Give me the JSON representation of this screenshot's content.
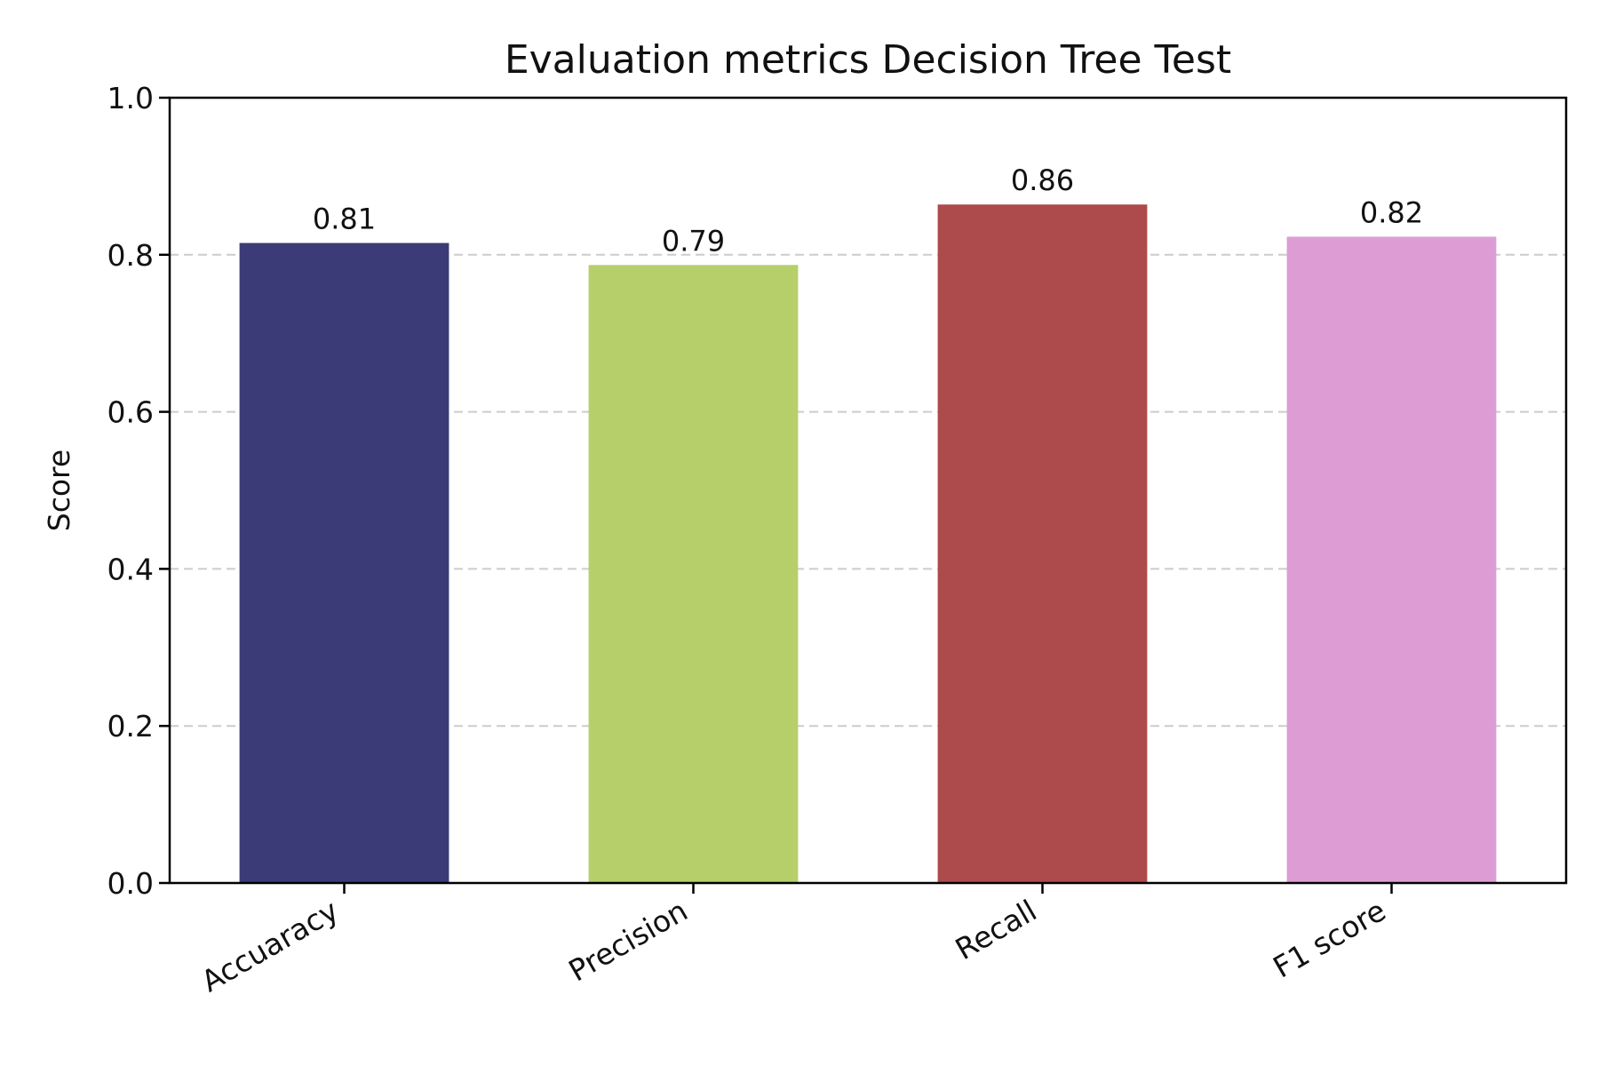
{
  "chart_data": {
    "type": "bar",
    "title": "Evaluation metrics Decision Tree Test",
    "xlabel": "",
    "ylabel": "Score",
    "categories": [
      "Accuaracy",
      "Precision",
      "Recall",
      "F1 score"
    ],
    "values": [
      0.815,
      0.787,
      0.864,
      0.823
    ],
    "value_labels": [
      "0.81",
      "0.79",
      "0.86",
      "0.82"
    ],
    "colors": [
      "#3a3b77",
      "#b6cf6b",
      "#ad4a4c",
      "#dd9dd4"
    ],
    "ylim": [
      0,
      1.0
    ],
    "yticks": [
      0.0,
      0.2,
      0.4,
      0.6,
      0.8,
      1.0
    ],
    "ytick_labels": [
      "0.0",
      "0.2",
      "0.4",
      "0.6",
      "0.8",
      "1.0"
    ],
    "grid": "y-dashed",
    "legend": "none"
  }
}
